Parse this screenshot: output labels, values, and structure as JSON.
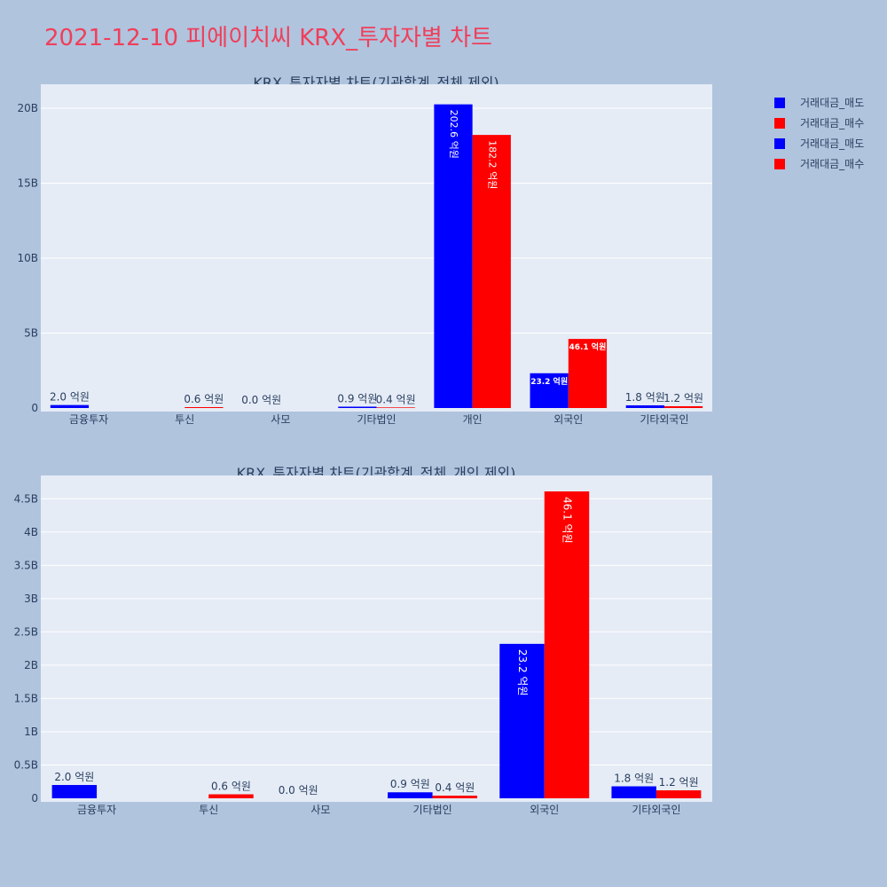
{
  "page_title": "2021-12-10 피에이치씨 KRX_투자자별 차트",
  "legend": [
    {
      "label": "거래대금_매도",
      "color": "#0000ff"
    },
    {
      "label": "거래대금_매수",
      "color": "#ff0000"
    },
    {
      "label": "거래대금_매도",
      "color": "#0000ff"
    },
    {
      "label": "거래대금_매수",
      "color": "#ff0000"
    }
  ],
  "chart_data": [
    {
      "type": "bar",
      "title": "KRX_투자자별 차트(기관합계_전체 제외)",
      "categories": [
        "금융투자",
        "투신",
        "사모",
        "기타법인",
        "개인",
        "외국인",
        "기타외국인"
      ],
      "series": [
        {
          "name": "거래대금_매도",
          "color": "#0000ff",
          "values": [
            200000000,
            0,
            0,
            90000000,
            20260000000,
            2320000000,
            180000000
          ],
          "labels": [
            "2.0 억원",
            "",
            "0.0 억원",
            "0.9 억원",
            "202.6 억원",
            "23.2 억원",
            "1.8 억원"
          ]
        },
        {
          "name": "거래대금_매수",
          "color": "#ff0000",
          "values": [
            0,
            60000000,
            0,
            40000000,
            18220000000,
            4610000000,
            120000000
          ],
          "labels": [
            "",
            "0.6 억원",
            "",
            "0.4 억원",
            "182.2 억원",
            "46.1 억원",
            "1.2 억원"
          ]
        }
      ],
      "yticks": [
        "0",
        "5B",
        "10B",
        "15B",
        "20B"
      ],
      "ylim": [
        0,
        21600000000
      ]
    },
    {
      "type": "bar",
      "title": "KRX_투자자별 차트(기관합계_전체_개인 제외)",
      "categories": [
        "금융투자",
        "투신",
        "사모",
        "기타법인",
        "외국인",
        "기타외국인"
      ],
      "series": [
        {
          "name": "거래대금_매도",
          "color": "#0000ff",
          "values": [
            200000000,
            0,
            0,
            90000000,
            2320000000,
            180000000
          ],
          "labels": [
            "2.0 억원",
            "",
            "0.0 억원",
            "0.9 억원",
            "23.2 억원",
            "1.8 억원"
          ]
        },
        {
          "name": "거래대금_매수",
          "color": "#ff0000",
          "values": [
            0,
            60000000,
            0,
            40000000,
            4610000000,
            120000000
          ],
          "labels": [
            "",
            "0.6 억원",
            "",
            "0.4 억원",
            "46.1 억원",
            "1.2 억원"
          ]
        }
      ],
      "yticks": [
        "0",
        "0.5B",
        "1B",
        "1.5B",
        "2B",
        "2.5B",
        "3B",
        "3.5B",
        "4B",
        "4.5B"
      ],
      "ylim": [
        0,
        4850000000
      ]
    }
  ]
}
